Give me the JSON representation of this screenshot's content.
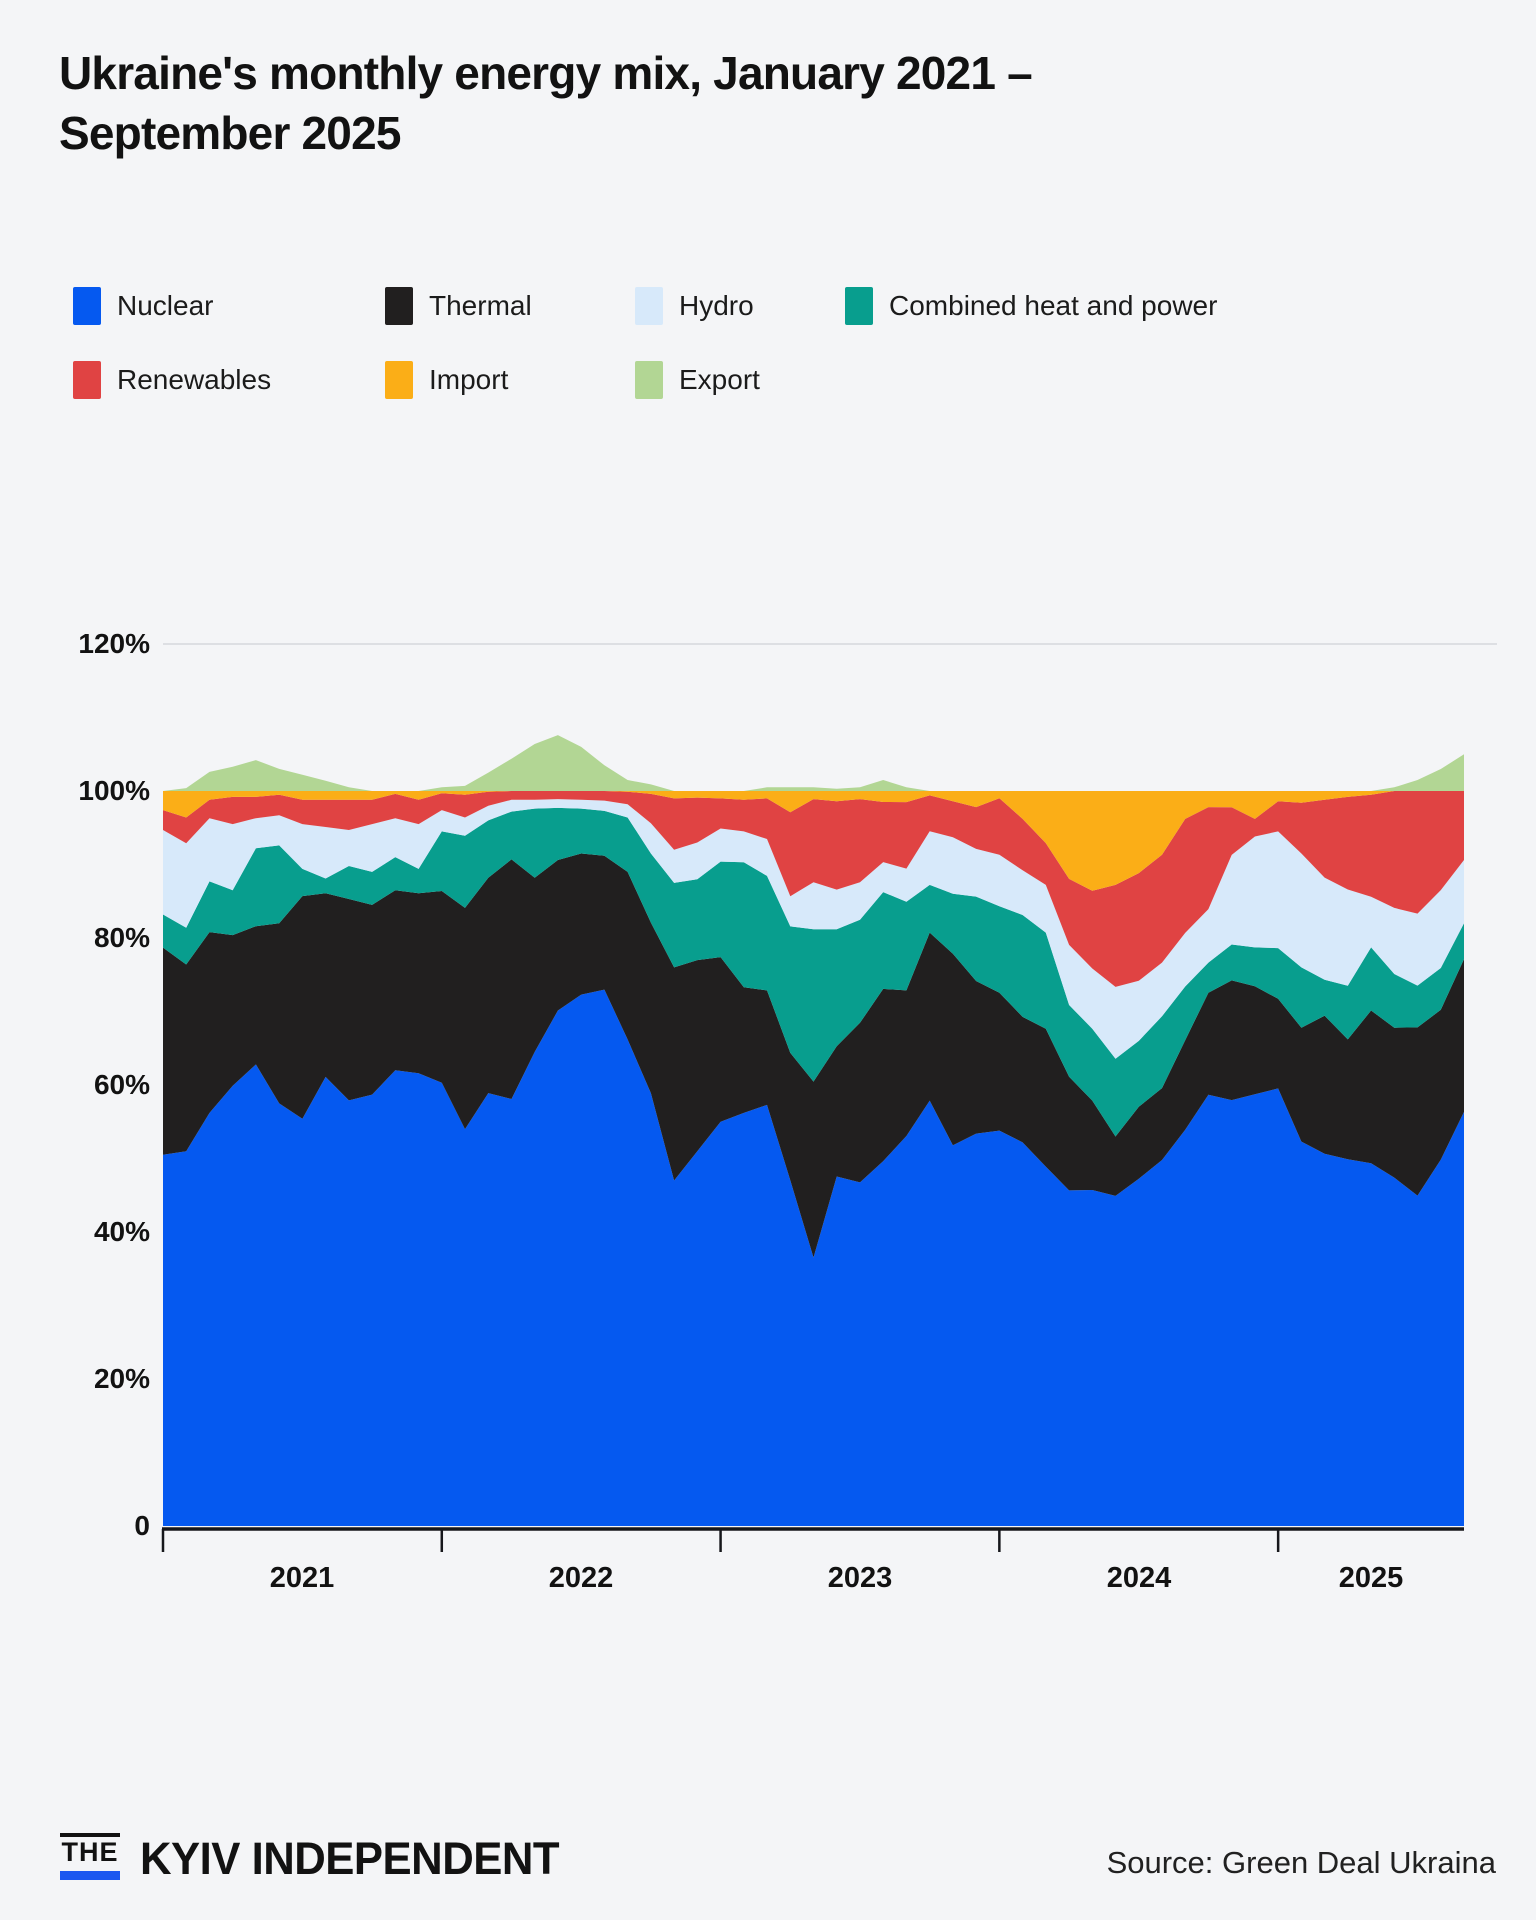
{
  "title": "Ukraine's monthly energy mix, January 2021 – September 2025",
  "legend": [
    {
      "label": "Nuclear",
      "color": "#0559F0"
    },
    {
      "label": "Thermal",
      "color": "#211F1F"
    },
    {
      "label": "Hydro",
      "color": "#D7E9FA"
    },
    {
      "label": "Combined heat and power",
      "color": "#089E8E"
    },
    {
      "label": "Renewables",
      "color": "#E04343"
    },
    {
      "label": "Import",
      "color": "#FBAE17"
    },
    {
      "label": "Export",
      "color": "#B2D694"
    }
  ],
  "chart_data": {
    "type": "area",
    "stacked": true,
    "unit": "%",
    "ylim": [
      0,
      120
    ],
    "gridlines_at": [
      120
    ],
    "legend_position": "top",
    "note": "Stacked shares of monthly energy mix; Export stacks above the 100% line",
    "y_ticks": [
      "120%",
      "100%",
      "80%",
      "60%",
      "40%",
      "20%",
      "0"
    ],
    "x_tick_years": [
      "2021",
      "2022",
      "2023",
      "2024",
      "2025"
    ],
    "months": [
      "Jan 2021",
      "Feb 2021",
      "Mar 2021",
      "Apr 2021",
      "May 2021",
      "Jun 2021",
      "Jul 2021",
      "Aug 2021",
      "Sep 2021",
      "Oct 2021",
      "Nov 2021",
      "Dec 2021",
      "Jan 2022",
      "Feb 2022",
      "Mar 2022",
      "Apr 2022",
      "May 2022",
      "Jun 2022",
      "Jul 2022",
      "Aug 2022",
      "Sep 2022",
      "Oct 2022",
      "Nov 2022",
      "Dec 2022",
      "Jan 2023",
      "Feb 2023",
      "Mar 2023",
      "Apr 2023",
      "May 2023",
      "Jun 2023",
      "Jul 2023",
      "Aug 2023",
      "Sep 2023",
      "Oct 2023",
      "Nov 2023",
      "Dec 2023",
      "Jan 2024",
      "Feb 2024",
      "Mar 2024",
      "Apr 2024",
      "May 2024",
      "Jun 2024",
      "Jul 2024",
      "Aug 2024",
      "Sep 2024",
      "Oct 2024",
      "Nov 2024",
      "Dec 2024",
      "Jan 2025",
      "Feb 2025",
      "Mar 2025",
      "Apr 2025",
      "May 2025",
      "Jun 2025",
      "Jul 2025",
      "Aug 2025",
      "Sep 2025"
    ],
    "series": [
      {
        "key": "nuclear",
        "name": "Nuclear",
        "color": "#0559F0",
        "values": [
          50.5,
          51,
          56.2,
          59.9,
          62.8,
          57.5,
          55.4,
          61.1,
          57.9,
          58.7,
          62,
          61.6,
          60.3,
          54,
          58.9,
          58.1,
          64.5,
          70.2,
          72.3,
          72.9,
          66.2,
          58.9,
          47,
          51,
          55,
          56.2,
          57,
          47,
          36.5,
          47.5,
          46.7,
          49.8,
          52.8,
          58,
          51.9,
          53.5,
          53.9,
          52.3,
          49,
          45.8,
          45.8,
          45,
          47.4,
          49.9,
          53.9,
          58.8,
          58,
          58.8,
          59.6,
          52.3,
          50.7,
          49.9,
          49.4,
          47.4,
          45,
          49.9,
          56.4
        ]
      },
      {
        "key": "thermal",
        "name": "Thermal",
        "color": "#211F1F",
        "values": [
          28.2,
          25.4,
          24.6,
          20.5,
          18.8,
          24.5,
          30.3,
          25,
          27.4,
          25.8,
          24.5,
          24.5,
          26.1,
          30.1,
          29.3,
          32.6,
          23.7,
          20.5,
          19.2,
          18.2,
          22.8,
          23.2,
          29,
          26,
          22.4,
          17.1,
          15.5,
          17.3,
          23.9,
          17.7,
          21.7,
          23.5,
          19.7,
          22.9,
          26.1,
          20.8,
          18.8,
          17.1,
          18.8,
          15.5,
          12.2,
          8.1,
          9.8,
          9.8,
          12.2,
          13.9,
          16.3,
          14.7,
          12.2,
          15.5,
          18.8,
          16.3,
          20.8,
          20.4,
          22.9,
          20.4,
          20.8
        ]
      },
      {
        "key": "chp",
        "name": "Combined heat and power",
        "color": "#089E8E",
        "values": [
          4.5,
          5,
          6.9,
          6.1,
          10.6,
          10.6,
          3.7,
          2,
          4.5,
          4.5,
          4.5,
          3.3,
          8.1,
          9.8,
          7.8,
          6.5,
          9.4,
          7.1,
          6.1,
          6.1,
          7.4,
          9.4,
          11.5,
          11,
          13,
          17,
          15.5,
          17.2,
          20.7,
          15.9,
          14,
          13.2,
          12,
          6.5,
          8.2,
          11.5,
          11.8,
          13.9,
          13.1,
          9.8,
          9.8,
          10.6,
          9,
          9.8,
          7.3,
          4.1,
          4.9,
          5.3,
          6.9,
          8.2,
          4.9,
          7.3,
          8.6,
          7.3,
          5.7,
          5.7,
          4.9
        ]
      },
      {
        "key": "hydro",
        "name": "Hydro",
        "color": "#D7E9FA",
        "values": [
          11.5,
          11.5,
          8.6,
          9,
          4.1,
          4.1,
          6.1,
          7,
          4.9,
          6.5,
          5.3,
          6.1,
          2.9,
          2.5,
          2,
          1.6,
          1.2,
          1.2,
          1.2,
          1.4,
          1.8,
          4.1,
          4.5,
          5,
          4.5,
          4.2,
          5,
          4.1,
          6.4,
          5.4,
          5.1,
          4.1,
          4.5,
          7.3,
          7.7,
          6.5,
          7,
          6.1,
          6.5,
          8.2,
          8.2,
          9.8,
          8.2,
          7.3,
          7.3,
          7.3,
          12.2,
          15.1,
          15.9,
          15.5,
          13.9,
          13.1,
          6.9,
          9,
          9.8,
          10.6,
          8.6
        ]
      },
      {
        "key": "renewables",
        "name": "Renewables",
        "color": "#E04343",
        "values": [
          2.7,
          3.5,
          2.5,
          3.7,
          2.9,
          2.8,
          3.3,
          3.7,
          4.1,
          3.3,
          3.3,
          3.3,
          2.3,
          3.1,
          1.9,
          1.2,
          1.2,
          1.1,
          1.2,
          1.3,
          1.7,
          4,
          7,
          6.1,
          4.1,
          4.3,
          5.5,
          11.4,
          11.3,
          12,
          11.3,
          8.2,
          9,
          4.9,
          4.9,
          5.7,
          7.7,
          7,
          5.7,
          9,
          10.6,
          13.9,
          14.7,
          14.7,
          15.5,
          13.9,
          6.5,
          2.4,
          4.1,
          6.9,
          10.6,
          12.6,
          13.9,
          15.9,
          16.7,
          13.5,
          9.4
        ]
      },
      {
        "key": "import",
        "name": "Import",
        "color": "#FBAE17",
        "values": [
          2.6,
          3.6,
          1.2,
          0.8,
          0.8,
          0.5,
          1.2,
          1.2,
          1.2,
          1.2,
          0.4,
          1.2,
          0.3,
          0.5,
          0.1,
          0,
          0,
          0,
          0,
          0,
          0.1,
          0.4,
          1,
          0.9,
          1,
          1.2,
          1,
          2.9,
          1.1,
          1.4,
          1.1,
          1.5,
          1.5,
          0.6,
          1.4,
          2.2,
          1,
          3.8,
          7.1,
          12,
          13.6,
          12.8,
          11.2,
          8.7,
          3.8,
          2.2,
          2.2,
          3.8,
          1.4,
          1.6,
          1.2,
          0.8,
          0.5,
          0,
          0,
          0,
          0
        ]
      },
      {
        "key": "export",
        "name": "Export",
        "color": "#B2D694",
        "values": [
          0,
          0.4,
          2.6,
          3.3,
          4.2,
          3,
          2.2,
          1.4,
          0.5,
          0,
          0,
          0,
          0.5,
          0.7,
          2.5,
          4.4,
          6.4,
          7.6,
          6,
          3.5,
          1.5,
          0.9,
          0,
          0,
          0,
          0,
          0.5,
          0.5,
          0.5,
          0.3,
          0.5,
          1.5,
          0.5,
          0,
          0,
          0,
          0,
          0,
          0,
          0,
          0,
          0,
          0,
          0,
          0,
          0,
          0,
          0,
          0,
          0,
          0,
          0,
          0,
          0.5,
          1.5,
          3,
          5
        ]
      }
    ],
    "colors": {
      "background": "#F4F5F7",
      "gridline": "#DDDFE3",
      "axis": "#16171B",
      "text": "#121212"
    }
  },
  "footer": {
    "brand_the": "THE",
    "brand_name": "KYIV INDEPENDENT",
    "source": "Source: Green Deal Ukraina"
  }
}
